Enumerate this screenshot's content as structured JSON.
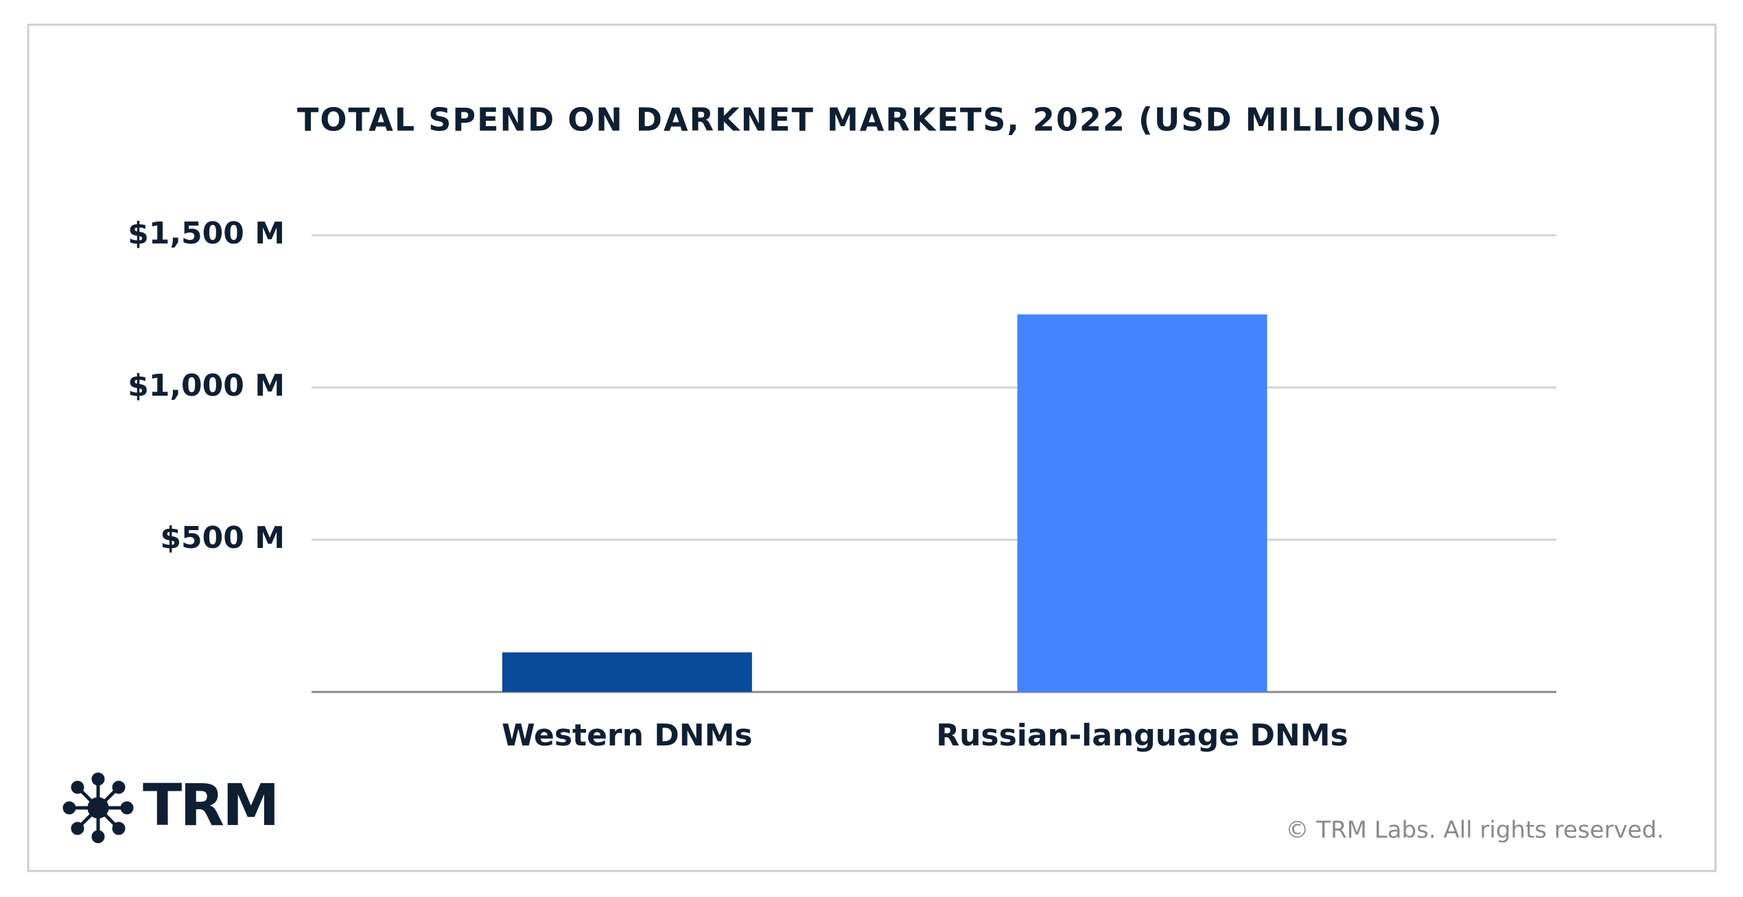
{
  "chart_data": {
    "type": "bar",
    "title": "TOTAL SPEND ON DARKNET MARKETS, 2022 (USD MILLIONS)",
    "categories": [
      "Western DNMs",
      "Russian-language DNMs"
    ],
    "values": [
      130,
      1240
    ],
    "colors": [
      "#0a4a9a",
      "#4285ff"
    ],
    "ylim": [
      0,
      1500
    ],
    "yticks": [
      {
        "value": 500,
        "label": "$500 M"
      },
      {
        "value": 1000,
        "label": "$1,000 M"
      },
      {
        "value": 1500,
        "label": "$1,500 M"
      }
    ],
    "grid": true
  },
  "logo": "TRM",
  "footer": "© TRM Labs. All rights reserved."
}
